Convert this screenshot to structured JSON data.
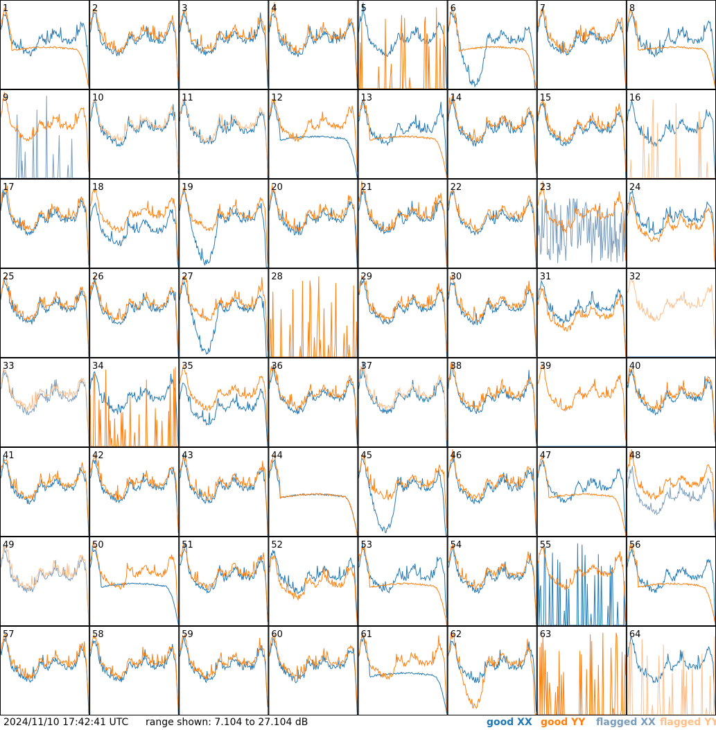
{
  "footer": {
    "timestamp": "2024/11/10 17:42:41 UTC",
    "range_text": "range shown: 7.104 to 27.104 dB"
  },
  "legend": [
    {
      "label": "good XX",
      "color": "#1f77b4"
    },
    {
      "label": "good YY",
      "color": "#ff7f0e"
    },
    {
      "label": "flagged XX",
      "color": "#7a9cbc"
    },
    {
      "label": "flagged YY",
      "color": "#ffbf8a"
    }
  ],
  "colors": {
    "good_xx": "#1f77b4",
    "good_yy": "#ff7f0e",
    "flagged_xx": "#7a9cbc",
    "flagged_yy": "#ffbf8a",
    "grid": "#000000"
  },
  "chart_data": {
    "type": "line",
    "title": "",
    "xlabel": "",
    "ylabel": "",
    "ylim": [
      7.104,
      27.104
    ],
    "grid_rows": 8,
    "grid_cols": 8,
    "panels": [
      {
        "label": "1",
        "xx": "good",
        "yy": "good",
        "xx_shape": "normal",
        "yy_shape": "rolloff"
      },
      {
        "label": "2",
        "xx": "good",
        "yy": "good",
        "xx_shape": "normal",
        "yy_shape": "normal"
      },
      {
        "label": "3",
        "xx": "good",
        "yy": "good",
        "xx_shape": "normal",
        "yy_shape": "normal"
      },
      {
        "label": "4",
        "xx": "good",
        "yy": "good",
        "xx_shape": "normal",
        "yy_shape": "normal"
      },
      {
        "label": "5",
        "xx": "good",
        "yy": "good",
        "xx_shape": "normal",
        "yy_shape": "spikes"
      },
      {
        "label": "6",
        "xx": "good",
        "yy": "good",
        "xx_shape": "dip",
        "yy_shape": "rolloff"
      },
      {
        "label": "7",
        "xx": "good",
        "yy": "good",
        "xx_shape": "normal",
        "yy_shape": "normal"
      },
      {
        "label": "8",
        "xx": "good",
        "yy": "good",
        "xx_shape": "normal",
        "yy_shape": "rolloff"
      },
      {
        "label": "9",
        "xx": "flagged",
        "yy": "good",
        "xx_shape": "spikes",
        "yy_shape": "normal"
      },
      {
        "label": "10",
        "xx": "good",
        "yy": "flagged",
        "xx_shape": "normal",
        "yy_shape": "normal"
      },
      {
        "label": "11",
        "xx": "good",
        "yy": "flagged",
        "xx_shape": "normal",
        "yy_shape": "normal"
      },
      {
        "label": "12",
        "xx": "good",
        "yy": "good",
        "xx_shape": "rolloff",
        "yy_shape": "normal"
      },
      {
        "label": "13",
        "xx": "good",
        "yy": "good",
        "xx_shape": "normal",
        "yy_shape": "rolloff"
      },
      {
        "label": "14",
        "xx": "good",
        "yy": "good",
        "xx_shape": "normal",
        "yy_shape": "normal"
      },
      {
        "label": "15",
        "xx": "good",
        "yy": "good",
        "xx_shape": "normal",
        "yy_shape": "normal"
      },
      {
        "label": "16",
        "xx": "good",
        "yy": "flagged",
        "xx_shape": "normal",
        "yy_shape": "spikes"
      },
      {
        "label": "17",
        "xx": "good",
        "yy": "good",
        "xx_shape": "normal",
        "yy_shape": "normal"
      },
      {
        "label": "18",
        "xx": "good",
        "yy": "good",
        "xx_shape": "lower",
        "yy_shape": "normal"
      },
      {
        "label": "19",
        "xx": "good",
        "yy": "good",
        "xx_shape": "dip",
        "yy_shape": "normal"
      },
      {
        "label": "20",
        "xx": "good",
        "yy": "good",
        "xx_shape": "normal",
        "yy_shape": "normal"
      },
      {
        "label": "21",
        "xx": "good",
        "yy": "good",
        "xx_shape": "normal",
        "yy_shape": "normal"
      },
      {
        "label": "22",
        "xx": "good",
        "yy": "good",
        "xx_shape": "normal",
        "yy_shape": "normal"
      },
      {
        "label": "23",
        "xx": "flagged",
        "yy": "good",
        "xx_shape": "noise",
        "yy_shape": "normal"
      },
      {
        "label": "24",
        "xx": "good",
        "yy": "good",
        "xx_shape": "normal",
        "yy_shape": "lower"
      },
      {
        "label": "25",
        "xx": "good",
        "yy": "good",
        "xx_shape": "normal",
        "yy_shape": "normal"
      },
      {
        "label": "26",
        "xx": "good",
        "yy": "good",
        "xx_shape": "normal",
        "yy_shape": "normal"
      },
      {
        "label": "27",
        "xx": "good",
        "yy": "good",
        "xx_shape": "dip",
        "yy_shape": "normal"
      },
      {
        "label": "28",
        "xx": "good",
        "yy": "good",
        "xx_shape": "none",
        "yy_shape": "spikes"
      },
      {
        "label": "29",
        "xx": "good",
        "yy": "good",
        "xx_shape": "normal",
        "yy_shape": "normal"
      },
      {
        "label": "30",
        "xx": "good",
        "yy": "good",
        "xx_shape": "normal",
        "yy_shape": "normal"
      },
      {
        "label": "31",
        "xx": "good",
        "yy": "good",
        "xx_shape": "normal",
        "yy_shape": "lower"
      },
      {
        "label": "32",
        "xx": "good",
        "yy": "flagged",
        "xx_shape": "none",
        "yy_shape": "normal"
      },
      {
        "label": "33",
        "xx": "flagged",
        "yy": "flagged",
        "xx_shape": "normal",
        "yy_shape": "normal"
      },
      {
        "label": "34",
        "xx": "good",
        "yy": "good",
        "xx_shape": "normal",
        "yy_shape": "spikes"
      },
      {
        "label": "35",
        "xx": "good",
        "yy": "good",
        "xx_shape": "lower",
        "yy_shape": "normal"
      },
      {
        "label": "36",
        "xx": "good",
        "yy": "good",
        "xx_shape": "normal",
        "yy_shape": "normal"
      },
      {
        "label": "37",
        "xx": "good",
        "yy": "flagged",
        "xx_shape": "normal",
        "yy_shape": "normal"
      },
      {
        "label": "38",
        "xx": "good",
        "yy": "good",
        "xx_shape": "normal",
        "yy_shape": "normal"
      },
      {
        "label": "39",
        "xx": "good",
        "yy": "good",
        "xx_shape": "none",
        "yy_shape": "normal"
      },
      {
        "label": "40",
        "xx": "good",
        "yy": "good",
        "xx_shape": "normal",
        "yy_shape": "normal"
      },
      {
        "label": "41",
        "xx": "good",
        "yy": "good",
        "xx_shape": "normal",
        "yy_shape": "normal"
      },
      {
        "label": "42",
        "xx": "good",
        "yy": "good",
        "xx_shape": "normal",
        "yy_shape": "normal"
      },
      {
        "label": "43",
        "xx": "good",
        "yy": "good",
        "xx_shape": "normal",
        "yy_shape": "normal"
      },
      {
        "label": "44",
        "xx": "good",
        "yy": "good",
        "xx_shape": "rolloff",
        "yy_shape": "rolloff"
      },
      {
        "label": "45",
        "xx": "good",
        "yy": "good",
        "xx_shape": "dip",
        "yy_shape": "normal"
      },
      {
        "label": "46",
        "xx": "good",
        "yy": "good",
        "xx_shape": "normal",
        "yy_shape": "normal"
      },
      {
        "label": "47",
        "xx": "good",
        "yy": "good",
        "xx_shape": "normal",
        "yy_shape": "rolloff"
      },
      {
        "label": "48",
        "xx": "flagged",
        "yy": "good",
        "xx_shape": "lower",
        "yy_shape": "normal"
      },
      {
        "label": "49",
        "xx": "flagged",
        "yy": "flagged",
        "xx_shape": "normal",
        "yy_shape": "normal"
      },
      {
        "label": "50",
        "xx": "good",
        "yy": "good",
        "xx_shape": "rolloff",
        "yy_shape": "normal"
      },
      {
        "label": "51",
        "xx": "good",
        "yy": "good",
        "xx_shape": "normal",
        "yy_shape": "normal"
      },
      {
        "label": "52",
        "xx": "good",
        "yy": "good",
        "xx_shape": "normal",
        "yy_shape": "lower"
      },
      {
        "label": "53",
        "xx": "good",
        "yy": "good",
        "xx_shape": "normal",
        "yy_shape": "rolloff"
      },
      {
        "label": "54",
        "xx": "good",
        "yy": "good",
        "xx_shape": "normal",
        "yy_shape": "normal"
      },
      {
        "label": "55",
        "xx": "good",
        "yy": "good",
        "xx_shape": "spikes",
        "yy_shape": "normal"
      },
      {
        "label": "56",
        "xx": "good",
        "yy": "good",
        "xx_shape": "normal",
        "yy_shape": "rolloff"
      },
      {
        "label": "57",
        "xx": "good",
        "yy": "good",
        "xx_shape": "normal",
        "yy_shape": "normal"
      },
      {
        "label": "58",
        "xx": "good",
        "yy": "good",
        "xx_shape": "normal",
        "yy_shape": "normal"
      },
      {
        "label": "59",
        "xx": "good",
        "yy": "good",
        "xx_shape": "normal",
        "yy_shape": "normal"
      },
      {
        "label": "60",
        "xx": "good",
        "yy": "good",
        "xx_shape": "normal",
        "yy_shape": "normal"
      },
      {
        "label": "61",
        "xx": "good",
        "yy": "good",
        "xx_shape": "rolloff",
        "yy_shape": "normal"
      },
      {
        "label": "62",
        "xx": "good",
        "yy": "good",
        "xx_shape": "normal",
        "yy_shape": "dip"
      },
      {
        "label": "63",
        "xx": "good",
        "yy": "good",
        "xx_shape": "none",
        "yy_shape": "spikes"
      },
      {
        "label": "64",
        "xx": "good",
        "yy": "flagged",
        "xx_shape": "normal",
        "yy_shape": "spikes"
      }
    ]
  }
}
